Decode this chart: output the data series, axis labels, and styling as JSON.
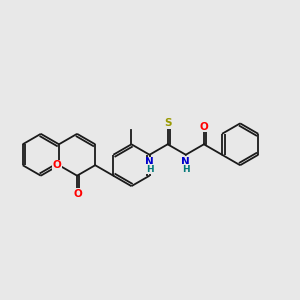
{
  "bg_color": "#e8e8e8",
  "bond_color": "#1a1a1a",
  "atom_colors": {
    "O": "#ff0000",
    "N": "#0000cc",
    "S": "#999900",
    "H": "#007777",
    "C": "#1a1a1a"
  }
}
